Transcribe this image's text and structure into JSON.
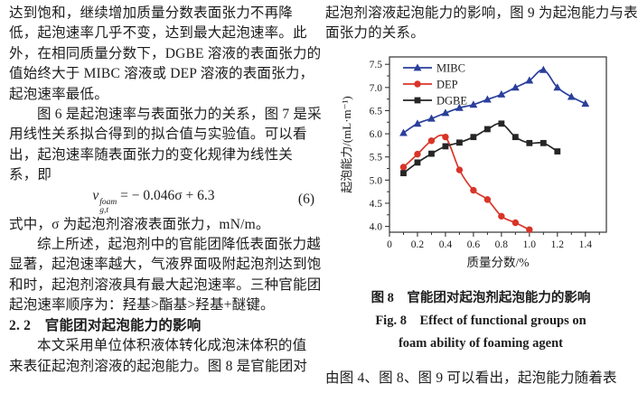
{
  "left_column": {
    "lines": [
      {
        "t": "达到饱和，继续增加质量分数表面张力不再降"
      },
      {
        "t": "低，起泡速率几乎不变，达到最大起泡速率。此"
      },
      {
        "t": "外，在相同质量分数下，DGBE 溶液的表面张力的"
      },
      {
        "t": "值始终大于 MIBC 溶液或 DEP 溶液的表面张力，"
      },
      {
        "t": "起泡速率最低。"
      },
      {
        "t": "图 6 是起泡速率与表面张力的关系，图 7 是采",
        "indent": true
      },
      {
        "t": "用线性关系拟合得到的拟合值与实验值。可以看"
      },
      {
        "t": "出，起泡速率随表面张力的变化规律为线性关"
      },
      {
        "t": "系，即"
      },
      {
        "formula": true
      },
      {
        "t": "式中，σ 为起泡剂溶液表面张力，mN/m。"
      },
      {
        "t": "综上所述，起泡剂中的官能团降低表面张力越",
        "indent": true
      },
      {
        "t": "显著，起泡速率越大，气液界面吸附起泡剂达到饱"
      },
      {
        "t": "和时，起泡剂溶液具有最大起泡速率。三种官能团"
      },
      {
        "t": "起泡速率顺序为：羟基>酯基>羟基+醚键。"
      },
      {
        "t": "2. 2　官能团对起泡能力的影响",
        "bold": true
      },
      {
        "t": "本文采用单位体积液体转化成泡沫体积的值",
        "indent": true
      },
      {
        "t": "来表征起泡剂溶液的起泡能力。图 8 是官能团对"
      }
    ],
    "formula": {
      "var": "v",
      "sup": "foam",
      "sub": "g,t",
      "rhs": " = − 0.046σ + 6.3",
      "number": "(6)"
    }
  },
  "right_column": {
    "top_lines": [
      "起泡剂溶液起泡能力的影响，图 9 为起泡能力与表",
      "面张力的关系。"
    ],
    "caption": {
      "zh": "图 8　官能团对起泡剂起泡能力的影响",
      "en1": "Fig. 8　Effect of functional groups on",
      "en2": "foam ability of foaming agent"
    },
    "bottom_lines": [
      "由图 4、图 8、图 9 可以看出，起泡能力随着表"
    ]
  },
  "chart_data": {
    "type": "line",
    "title": "",
    "xlabel": "质量分数/%",
    "ylabel": "起泡能力/(mL·m⁻¹)",
    "xlim": [
      0,
      1.55
    ],
    "ylim": [
      3.875,
      7.66
    ],
    "xticks": [
      0,
      0.2,
      0.4,
      0.6,
      0.8,
      1.0,
      1.2,
      1.4
    ],
    "yticks": [
      4.0,
      4.5,
      5.0,
      5.5,
      6.0,
      6.5,
      7.0,
      7.5
    ],
    "x_minor_step": 0.1,
    "y_minor_step": 0.25,
    "grid": false,
    "legend_position": "top-left",
    "axis_color": "#333333",
    "series": [
      {
        "name": "MIBC",
        "color": "#2a3f9b",
        "marker": "triangle",
        "x": [
          0.1,
          0.2,
          0.3,
          0.4,
          0.5,
          0.6,
          0.7,
          0.8,
          0.9,
          1.0,
          1.1,
          1.2,
          1.3,
          1.4
        ],
        "y": [
          6.02,
          6.22,
          6.33,
          6.45,
          6.56,
          6.63,
          6.74,
          6.85,
          7.0,
          7.15,
          7.38,
          7.0,
          6.8,
          6.65
        ]
      },
      {
        "name": "DEP",
        "color": "#d93428",
        "marker": "circle",
        "x": [
          0.1,
          0.2,
          0.3,
          0.4,
          0.5,
          0.6,
          0.7,
          0.8,
          0.9,
          1.0
        ],
        "y": [
          5.28,
          5.56,
          5.85,
          5.93,
          5.22,
          4.78,
          4.58,
          4.22,
          4.08,
          3.93
        ]
      },
      {
        "name": "DGBE",
        "color": "#262626",
        "marker": "square",
        "x": [
          0.1,
          0.2,
          0.3,
          0.4,
          0.5,
          0.6,
          0.7,
          0.8,
          0.9,
          1.0,
          1.1,
          1.2
        ],
        "y": [
          5.15,
          5.38,
          5.57,
          5.73,
          5.81,
          5.93,
          6.1,
          6.22,
          5.93,
          5.8,
          5.8,
          5.62
        ]
      }
    ]
  }
}
